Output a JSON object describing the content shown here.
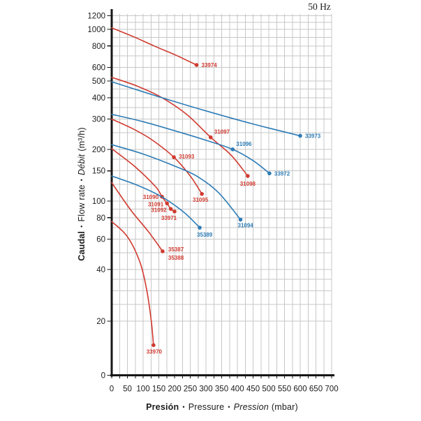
{
  "frequency_label": "50 Hz",
  "colors": {
    "red": "#d03a30",
    "blue": "#2e7cb6",
    "grid": "#c7c7c7",
    "axis": "#161616",
    "tick_text": "#1b1b1b"
  },
  "chart_data": {
    "type": "line",
    "title": "50 Hz",
    "x_axis": {
      "unit": "mbar",
      "min": 0,
      "max": 700,
      "label_step": 50,
      "grid_step": 25,
      "tick_labels": [
        0,
        50,
        100,
        150,
        200,
        250,
        300,
        350,
        400,
        450,
        500,
        550,
        600,
        650,
        700
      ],
      "title_parts": [
        {
          "text": "Presión",
          "style": "bold"
        },
        {
          "text": "•",
          "style": "bullet"
        },
        {
          "text": "Pressure",
          "style": "regular"
        },
        {
          "text": "•",
          "style": "bullet"
        },
        {
          "text": "Pression",
          "style": "italic"
        },
        {
          "text": "(mbar)",
          "style": "unit"
        }
      ]
    },
    "y_axis": {
      "unit": "m³/h",
      "scale": "log",
      "tick_labels": [
        1200,
        1000,
        800,
        600,
        500,
        400,
        300,
        200,
        150,
        100,
        80,
        60,
        40,
        20,
        0
      ],
      "gridline_values": [
        20,
        25,
        30,
        35,
        40,
        50,
        60,
        70,
        80,
        90,
        100,
        125,
        150,
        175,
        200,
        250,
        300,
        350,
        400,
        450,
        500,
        600,
        700,
        800,
        900,
        1000,
        1100,
        1200
      ],
      "title_parts": [
        {
          "text": "Caudal",
          "style": "bold"
        },
        {
          "text": "•",
          "style": "bullet"
        },
        {
          "text": "Flow rate",
          "style": "regular"
        },
        {
          "text": "•",
          "style": "bullet"
        },
        {
          "text": "Débit",
          "style": "italic"
        },
        {
          "text": "(m³/h)",
          "style": "unit"
        }
      ]
    },
    "series": [
      {
        "id": "33974",
        "color": "red",
        "points": [
          [
            0,
            1020
          ],
          [
            70,
            905
          ],
          [
            135,
            800
          ],
          [
            205,
            706
          ],
          [
            270,
            620
          ]
        ],
        "markers": [
          {
            "pressure": 270,
            "flow": 620,
            "labels": [
              {
                "text": "33974",
                "dx": 7,
                "dy": 3,
                "anchor": "start"
              }
            ]
          }
        ]
      },
      {
        "id": "31097-31098",
        "color": "red",
        "points": [
          [
            0,
            525
          ],
          [
            80,
            468
          ],
          [
            160,
            400
          ],
          [
            240,
            318
          ],
          [
            315,
            235
          ],
          [
            380,
            185
          ],
          [
            433,
            140
          ]
        ],
        "markers": [
          {
            "pressure": 315,
            "flow": 235,
            "labels": [
              {
                "text": "31097",
                "dx": 5,
                "dy": -5,
                "anchor": "start"
              }
            ]
          },
          {
            "pressure": 433,
            "flow": 140,
            "labels": [
              {
                "text": "31098",
                "dx": 0,
                "dy": 14,
                "anchor": "middle"
              }
            ]
          }
        ]
      },
      {
        "id": "31093-31095",
        "color": "red",
        "points": [
          [
            0,
            300
          ],
          [
            70,
            262
          ],
          [
            130,
            226
          ],
          [
            198,
            180
          ],
          [
            250,
            140
          ],
          [
            287,
            110
          ]
        ],
        "markers": [
          {
            "pressure": 198,
            "flow": 180,
            "labels": [
              {
                "text": "31093",
                "dx": 7,
                "dy": 2,
                "anchor": "start"
              }
            ]
          },
          {
            "pressure": 287,
            "flow": 110,
            "labels": [
              {
                "text": "31095",
                "dx": -2,
                "dy": 11,
                "anchor": "middle"
              }
            ]
          }
        ]
      },
      {
        "id": "31090-31091-31092-33971",
        "color": "red",
        "points": [
          [
            0,
            202
          ],
          [
            75,
            158
          ],
          [
            140,
            121
          ],
          [
            160,
            106
          ],
          [
            176,
            97
          ],
          [
            188,
            90
          ],
          [
            200,
            87
          ]
        ],
        "markers": [
          {
            "pressure": 160,
            "flow": 106,
            "labels": [
              {
                "text": "31090",
                "dx": -5,
                "dy": 3,
                "anchor": "end"
              }
            ]
          },
          {
            "pressure": 176,
            "flow": 97,
            "labels": [
              {
                "text": "31091",
                "dx": -5,
                "dy": 4,
                "anchor": "end"
              }
            ]
          },
          {
            "pressure": 188,
            "flow": 90,
            "labels": [
              {
                "text": "31092",
                "dx": -6,
                "dy": 4,
                "anchor": "end"
              }
            ]
          },
          {
            "pressure": 200,
            "flow": 87,
            "labels": [
              {
                "text": "33971",
                "dx": -8,
                "dy": 12,
                "anchor": "middle"
              }
            ]
          }
        ]
      },
      {
        "id": "35387-35388",
        "color": "red",
        "points": [
          [
            0,
            128
          ],
          [
            60,
            89
          ],
          [
            115,
            67
          ],
          [
            162,
            51
          ]
        ],
        "markers": [
          {
            "pressure": 162,
            "flow": 51,
            "labels": [
              {
                "text": "35387",
                "dx": 8,
                "dy": 0,
                "anchor": "start"
              },
              {
                "text": "35388",
                "dx": 8,
                "dy": 12,
                "anchor": "start"
              }
            ]
          }
        ]
      },
      {
        "id": "33970",
        "color": "red",
        "points": [
          [
            0,
            76
          ],
          [
            50,
            62
          ],
          [
            90,
            44
          ],
          [
            112,
            30
          ],
          [
            126,
            20
          ],
          [
            133,
            14.5
          ]
        ],
        "markers": [
          {
            "pressure": 133,
            "flow": 14.5,
            "labels": [
              {
                "text": "33970",
                "dx": 1,
                "dy": 12,
                "anchor": "middle"
              }
            ]
          }
        ]
      },
      {
        "id": "33973",
        "color": "blue",
        "points": [
          [
            0,
            495
          ],
          [
            150,
            405
          ],
          [
            300,
            335
          ],
          [
            450,
            281
          ],
          [
            600,
            240
          ]
        ],
        "markers": [
          {
            "pressure": 600,
            "flow": 240,
            "labels": [
              {
                "text": "33973",
                "dx": 7,
                "dy": 3,
                "anchor": "start"
              }
            ]
          }
        ]
      },
      {
        "id": "31096-33972",
        "color": "blue",
        "points": [
          [
            0,
            320
          ],
          [
            100,
            290
          ],
          [
            200,
            257
          ],
          [
            300,
            226
          ],
          [
            385,
            200
          ],
          [
            450,
            172
          ],
          [
            502,
            145
          ]
        ],
        "markers": [
          {
            "pressure": 385,
            "flow": 200,
            "labels": [
              {
                "text": "31096",
                "dx": 5,
                "dy": -5,
                "anchor": "start"
              }
            ]
          },
          {
            "pressure": 502,
            "flow": 145,
            "labels": [
              {
                "text": "33972",
                "dx": 7,
                "dy": 3,
                "anchor": "start"
              }
            ]
          }
        ]
      },
      {
        "id": "31094",
        "color": "blue",
        "points": [
          [
            0,
            213
          ],
          [
            100,
            188
          ],
          [
            200,
            160
          ],
          [
            270,
            140
          ],
          [
            340,
            112
          ],
          [
            410,
            78
          ]
        ],
        "markers": [
          {
            "pressure": 410,
            "flow": 78,
            "labels": [
              {
                "text": "31094",
                "dx": -4,
                "dy": 11,
                "anchor": "start"
              }
            ]
          }
        ]
      },
      {
        "id": "35389",
        "color": "blue",
        "points": [
          [
            0,
            140
          ],
          [
            80,
            124
          ],
          [
            159,
            106
          ],
          [
            230,
            86
          ],
          [
            280,
            70
          ]
        ],
        "markers": [
          {
            "pressure": 280,
            "flow": 70,
            "labels": [
              {
                "text": "35389",
                "dx": -4,
                "dy": 13,
                "anchor": "start"
              }
            ]
          }
        ]
      }
    ]
  }
}
